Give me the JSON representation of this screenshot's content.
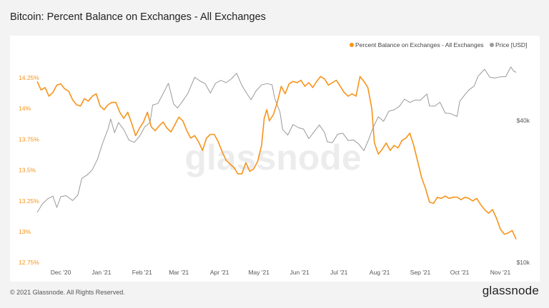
{
  "title": "Bitcoin: Percent Balance on Exchanges - All Exchanges",
  "footer": "© 2021 Glassnode. All Rights Reserved.",
  "brand": "glassnode",
  "watermark": "glassnode",
  "colors": {
    "balance": "#f7931a",
    "price": "#999999",
    "left_axis": "#f7931a",
    "right_axis": "#555555",
    "x_axis": "#555555"
  },
  "chart_data": {
    "type": "line",
    "legend": [
      "Percent Balance on Exchanges - All Exchanges",
      "Price [USD]"
    ],
    "legend_position": "top-right",
    "grid": false,
    "x_ticks": [
      "Dec '20",
      "Jan '21",
      "Feb '21",
      "Mar '21",
      "Apr '21",
      "May '21",
      "Jun '21",
      "Jul '21",
      "Aug '21",
      "Sep '21",
      "Oct '21",
      "Nov '21"
    ],
    "x_range": [
      "2020-11-13",
      "2021-11-13"
    ],
    "y_left": {
      "ticks": [
        "14.25%",
        "14%",
        "13.75%",
        "13.5%",
        "13.25%",
        "13%",
        "12.75%"
      ],
      "tick_values": [
        14.25,
        14.0,
        13.75,
        13.5,
        13.25,
        13.0,
        12.75
      ],
      "range": [
        12.75,
        14.3
      ]
    },
    "y_right": {
      "ticks": [
        "$40k",
        "$10k"
      ],
      "tick_values": [
        40000,
        10000
      ],
      "scale": "log",
      "range": [
        10000,
        70000
      ]
    },
    "series": [
      {
        "name": "Percent Balance on Exchanges - All Exchanges",
        "axis": "left",
        "points": [
          [
            "2020-11-13",
            14.22
          ],
          [
            "2020-11-16",
            14.15
          ],
          [
            "2020-11-19",
            14.17
          ],
          [
            "2020-11-22",
            14.1
          ],
          [
            "2020-11-25",
            14.13
          ],
          [
            "2020-11-28",
            14.19
          ],
          [
            "2020-12-01",
            14.2
          ],
          [
            "2020-12-04",
            14.16
          ],
          [
            "2020-12-07",
            14.14
          ],
          [
            "2020-12-10",
            14.07
          ],
          [
            "2020-12-13",
            14.03
          ],
          [
            "2020-12-16",
            14.02
          ],
          [
            "2020-12-19",
            14.08
          ],
          [
            "2020-12-22",
            14.06
          ],
          [
            "2020-12-25",
            14.1
          ],
          [
            "2020-12-28",
            14.12
          ],
          [
            "2020-12-31",
            14.02
          ],
          [
            "2021-01-03",
            13.99
          ],
          [
            "2021-01-06",
            14.03
          ],
          [
            "2021-01-09",
            14.05
          ],
          [
            "2021-01-12",
            14.05
          ],
          [
            "2021-01-15",
            13.97
          ],
          [
            "2021-01-18",
            13.92
          ],
          [
            "2021-01-21",
            13.97
          ],
          [
            "2021-01-24",
            13.88
          ],
          [
            "2021-01-27",
            13.78
          ],
          [
            "2021-01-30",
            13.84
          ],
          [
            "2021-02-02",
            13.89
          ],
          [
            "2021-02-05",
            13.97
          ],
          [
            "2021-02-08",
            13.85
          ],
          [
            "2021-02-11",
            13.82
          ],
          [
            "2021-02-14",
            13.86
          ],
          [
            "2021-02-17",
            13.89
          ],
          [
            "2021-02-20",
            13.84
          ],
          [
            "2021-02-23",
            13.81
          ],
          [
            "2021-02-26",
            13.87
          ],
          [
            "2021-03-01",
            13.93
          ],
          [
            "2021-03-04",
            13.9
          ],
          [
            "2021-03-07",
            13.82
          ],
          [
            "2021-03-10",
            13.76
          ],
          [
            "2021-03-13",
            13.78
          ],
          [
            "2021-03-16",
            13.73
          ],
          [
            "2021-03-19",
            13.66
          ],
          [
            "2021-03-22",
            13.76
          ],
          [
            "2021-03-25",
            13.79
          ],
          [
            "2021-03-28",
            13.79
          ],
          [
            "2021-03-31",
            13.73
          ],
          [
            "2021-04-03",
            13.65
          ],
          [
            "2021-04-06",
            13.58
          ],
          [
            "2021-04-09",
            13.55
          ],
          [
            "2021-04-12",
            13.52
          ],
          [
            "2021-04-15",
            13.47
          ],
          [
            "2021-04-18",
            13.47
          ],
          [
            "2021-04-21",
            13.56
          ],
          [
            "2021-04-24",
            13.49
          ],
          [
            "2021-04-27",
            13.51
          ],
          [
            "2021-04-30",
            13.57
          ],
          [
            "2021-05-03",
            13.7
          ],
          [
            "2021-05-05",
            13.92
          ],
          [
            "2021-05-07",
            13.99
          ],
          [
            "2021-05-09",
            13.9
          ],
          [
            "2021-05-12",
            13.95
          ],
          [
            "2021-05-15",
            14.05
          ],
          [
            "2021-05-18",
            14.18
          ],
          [
            "2021-05-21",
            14.12
          ],
          [
            "2021-05-24",
            14.2
          ],
          [
            "2021-05-27",
            14.22
          ],
          [
            "2021-05-30",
            14.21
          ],
          [
            "2021-06-02",
            14.23
          ],
          [
            "2021-06-05",
            14.18
          ],
          [
            "2021-06-08",
            14.21
          ],
          [
            "2021-06-11",
            14.17
          ],
          [
            "2021-06-14",
            14.22
          ],
          [
            "2021-06-17",
            14.26
          ],
          [
            "2021-06-20",
            14.24
          ],
          [
            "2021-06-23",
            14.19
          ],
          [
            "2021-06-26",
            14.21
          ],
          [
            "2021-06-29",
            14.23
          ],
          [
            "2021-07-02",
            14.18
          ],
          [
            "2021-07-05",
            14.13
          ],
          [
            "2021-07-08",
            14.1
          ],
          [
            "2021-07-11",
            14.12
          ],
          [
            "2021-07-14",
            14.1
          ],
          [
            "2021-07-17",
            14.26
          ],
          [
            "2021-07-20",
            14.22
          ],
          [
            "2021-07-23",
            14.17
          ],
          [
            "2021-07-26",
            14.0
          ],
          [
            "2021-07-28",
            13.72
          ],
          [
            "2021-07-31",
            13.63
          ],
          [
            "2021-08-03",
            13.67
          ],
          [
            "2021-08-06",
            13.72
          ],
          [
            "2021-08-09",
            13.66
          ],
          [
            "2021-08-12",
            13.7
          ],
          [
            "2021-08-15",
            13.68
          ],
          [
            "2021-08-18",
            13.74
          ],
          [
            "2021-08-21",
            13.76
          ],
          [
            "2021-08-24",
            13.8
          ],
          [
            "2021-08-27",
            13.7
          ],
          [
            "2021-08-30",
            13.57
          ],
          [
            "2021-09-02",
            13.44
          ],
          [
            "2021-09-05",
            13.35
          ],
          [
            "2021-09-08",
            13.24
          ],
          [
            "2021-09-11",
            13.23
          ],
          [
            "2021-09-14",
            13.28
          ],
          [
            "2021-09-17",
            13.27
          ],
          [
            "2021-09-20",
            13.29
          ],
          [
            "2021-09-23",
            13.27
          ],
          [
            "2021-09-26",
            13.28
          ],
          [
            "2021-09-29",
            13.28
          ],
          [
            "2021-10-02",
            13.26
          ],
          [
            "2021-10-05",
            13.28
          ],
          [
            "2021-10-08",
            13.27
          ],
          [
            "2021-10-11",
            13.25
          ],
          [
            "2021-10-14",
            13.27
          ],
          [
            "2021-10-17",
            13.22
          ],
          [
            "2021-10-20",
            13.18
          ],
          [
            "2021-10-23",
            13.15
          ],
          [
            "2021-10-26",
            13.18
          ],
          [
            "2021-10-29",
            13.11
          ],
          [
            "2021-11-01",
            13.02
          ],
          [
            "2021-11-04",
            12.98
          ],
          [
            "2021-11-07",
            12.99
          ],
          [
            "2021-11-10",
            13.01
          ],
          [
            "2021-11-13",
            12.94
          ]
        ]
      },
      {
        "name": "Price [USD]",
        "axis": "right",
        "points": [
          [
            "2020-11-13",
            16300
          ],
          [
            "2020-11-17",
            17700
          ],
          [
            "2020-11-21",
            18600
          ],
          [
            "2020-11-25",
            19100
          ],
          [
            "2020-11-28",
            17100
          ],
          [
            "2020-12-01",
            19000
          ],
          [
            "2020-12-05",
            19200
          ],
          [
            "2020-12-10",
            18300
          ],
          [
            "2020-12-14",
            19300
          ],
          [
            "2020-12-17",
            22700
          ],
          [
            "2020-12-21",
            23500
          ],
          [
            "2020-12-25",
            24700
          ],
          [
            "2020-12-29",
            27400
          ],
          [
            "2021-01-02",
            32200
          ],
          [
            "2021-01-06",
            36800
          ],
          [
            "2021-01-08",
            40600
          ],
          [
            "2021-01-11",
            35500
          ],
          [
            "2021-01-14",
            39200
          ],
          [
            "2021-01-18",
            36600
          ],
          [
            "2021-01-22",
            33000
          ],
          [
            "2021-01-26",
            32300
          ],
          [
            "2021-01-30",
            34300
          ],
          [
            "2021-02-03",
            37600
          ],
          [
            "2021-02-07",
            39200
          ],
          [
            "2021-02-09",
            46500
          ],
          [
            "2021-02-13",
            47200
          ],
          [
            "2021-02-17",
            52100
          ],
          [
            "2021-02-21",
            57500
          ],
          [
            "2021-02-25",
            47000
          ],
          [
            "2021-02-28",
            45200
          ],
          [
            "2021-03-04",
            48500
          ],
          [
            "2021-03-08",
            52300
          ],
          [
            "2021-03-13",
            61000
          ],
          [
            "2021-03-17",
            58900
          ],
          [
            "2021-03-21",
            57300
          ],
          [
            "2021-03-25",
            52300
          ],
          [
            "2021-03-29",
            57600
          ],
          [
            "2021-04-02",
            59200
          ],
          [
            "2021-04-06",
            57900
          ],
          [
            "2021-04-10",
            60100
          ],
          [
            "2021-04-14",
            63500
          ],
          [
            "2021-04-18",
            56300
          ],
          [
            "2021-04-22",
            51800
          ],
          [
            "2021-04-25",
            49000
          ],
          [
            "2021-04-29",
            53600
          ],
          [
            "2021-05-03",
            56600
          ],
          [
            "2021-05-07",
            57400
          ],
          [
            "2021-05-11",
            56700
          ],
          [
            "2021-05-13",
            49700
          ],
          [
            "2021-05-17",
            43500
          ],
          [
            "2021-05-19",
            36700
          ],
          [
            "2021-05-23",
            34700
          ],
          [
            "2021-05-27",
            38500
          ],
          [
            "2021-05-31",
            37300
          ],
          [
            "2021-06-04",
            36800
          ],
          [
            "2021-06-08",
            33500
          ],
          [
            "2021-06-12",
            35800
          ],
          [
            "2021-06-16",
            38300
          ],
          [
            "2021-06-20",
            35600
          ],
          [
            "2021-06-22",
            32500
          ],
          [
            "2021-06-26",
            32200
          ],
          [
            "2021-06-30",
            35000
          ],
          [
            "2021-07-04",
            35300
          ],
          [
            "2021-07-08",
            32900
          ],
          [
            "2021-07-12",
            33100
          ],
          [
            "2021-07-16",
            31800
          ],
          [
            "2021-07-20",
            29800
          ],
          [
            "2021-07-24",
            33600
          ],
          [
            "2021-07-27",
            37300
          ],
          [
            "2021-07-31",
            41500
          ],
          [
            "2021-08-04",
            39700
          ],
          [
            "2021-08-08",
            43800
          ],
          [
            "2021-08-12",
            44400
          ],
          [
            "2021-08-16",
            45900
          ],
          [
            "2021-08-20",
            49300
          ],
          [
            "2021-08-24",
            47700
          ],
          [
            "2021-08-28",
            48900
          ],
          [
            "2021-09-01",
            48800
          ],
          [
            "2021-09-06",
            51800
          ],
          [
            "2021-09-08",
            46100
          ],
          [
            "2021-09-12",
            46000
          ],
          [
            "2021-09-16",
            47800
          ],
          [
            "2021-09-20",
            43000
          ],
          [
            "2021-09-24",
            42800
          ],
          [
            "2021-09-29",
            41600
          ],
          [
            "2021-10-01",
            48200
          ],
          [
            "2021-10-05",
            51500
          ],
          [
            "2021-10-08",
            53900
          ],
          [
            "2021-10-12",
            56000
          ],
          [
            "2021-10-15",
            61700
          ],
          [
            "2021-10-20",
            66000
          ],
          [
            "2021-10-24",
            61000
          ],
          [
            "2021-10-28",
            60600
          ],
          [
            "2021-11-01",
            61300
          ],
          [
            "2021-11-05",
            61400
          ],
          [
            "2021-11-09",
            67500
          ],
          [
            "2021-11-11",
            64900
          ],
          [
            "2021-11-13",
            64000
          ]
        ]
      }
    ]
  }
}
